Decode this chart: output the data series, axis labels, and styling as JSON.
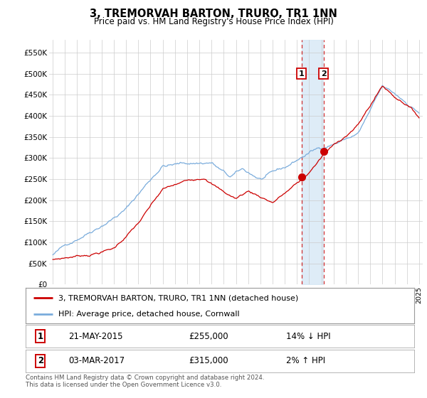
{
  "title": "3, TREMORVAH BARTON, TRURO, TR1 1NN",
  "subtitle": "Price paid vs. HM Land Registry's House Price Index (HPI)",
  "legend_line1": "3, TREMORVAH BARTON, TRURO, TR1 1NN (detached house)",
  "legend_line2": "HPI: Average price, detached house, Cornwall",
  "annotation1": {
    "num": "1",
    "date": "21-MAY-2015",
    "price": "£255,000",
    "pct": "14% ↓ HPI"
  },
  "annotation2": {
    "num": "2",
    "date": "03-MAR-2017",
    "price": "£315,000",
    "pct": "2% ↑ HPI"
  },
  "footnote": "Contains HM Land Registry data © Crown copyright and database right 2024.\nThis data is licensed under the Open Government Licence v3.0.",
  "line1_color": "#cc0000",
  "line2_color": "#7aacdc",
  "shade_color": "#d6e8f5",
  "marker_color": "#cc0000",
  "annot_box_color": "#cc0000",
  "grid_color": "#cccccc",
  "bg_color": "#ffffff",
  "ylim": [
    0,
    580000
  ],
  "yticks": [
    0,
    50000,
    100000,
    150000,
    200000,
    250000,
    300000,
    350000,
    400000,
    450000,
    500000,
    550000
  ],
  "ytick_labels": [
    "£0",
    "£50K",
    "£100K",
    "£150K",
    "£200K",
    "£250K",
    "£300K",
    "£350K",
    "£400K",
    "£450K",
    "£500K",
    "£550K"
  ],
  "sale1_year": 2015.38,
  "sale1_price": 255000,
  "sale2_year": 2017.17,
  "sale2_price": 315000,
  "hpi_seed": 42,
  "red_seed": 7
}
